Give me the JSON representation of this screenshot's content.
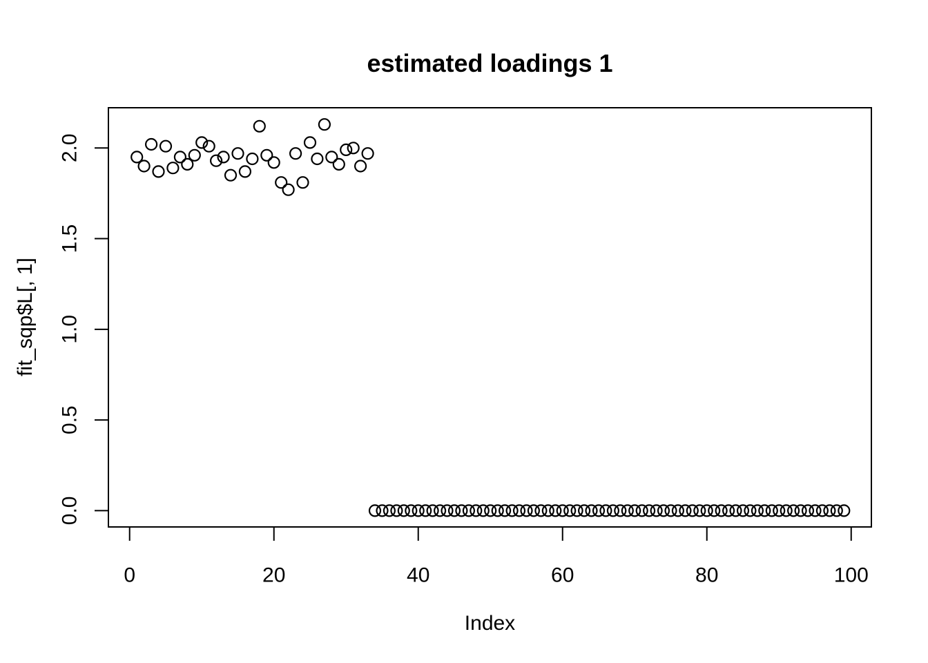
{
  "chart_data": {
    "type": "scatter",
    "title": "estimated loadings 1",
    "xlabel": "Index",
    "ylabel": "fit_sqp$L[, 1]",
    "marker": "open-circle",
    "point_color": "#000000",
    "background_color": "#ffffff",
    "grid": false,
    "legend": "none",
    "xlim": [
      -2.94,
      102.8
    ],
    "ylim": [
      -0.09,
      2.222
    ],
    "x_tick_values": [
      0,
      20,
      40,
      60,
      80,
      100
    ],
    "x_tick_labels": [
      "0",
      "20",
      "40",
      "60",
      "80",
      "100"
    ],
    "y_tick_values": [
      0.0,
      0.5,
      1.0,
      1.5,
      2.0
    ],
    "y_tick_labels": [
      "0.0",
      "0.5",
      "1.0",
      "1.5",
      "2.0"
    ],
    "n_points": 99,
    "points": [
      [
        1,
        1.95
      ],
      [
        2,
        1.9
      ],
      [
        3,
        2.02
      ],
      [
        4,
        1.87
      ],
      [
        5,
        2.01
      ],
      [
        6,
        1.89
      ],
      [
        7,
        1.95
      ],
      [
        8,
        1.91
      ],
      [
        9,
        1.96
      ],
      [
        10,
        2.03
      ],
      [
        11,
        2.01
      ],
      [
        12,
        1.93
      ],
      [
        13,
        1.95
      ],
      [
        14,
        1.85
      ],
      [
        15,
        1.97
      ],
      [
        16,
        1.87
      ],
      [
        17,
        1.94
      ],
      [
        18,
        2.12
      ],
      [
        19,
        1.96
      ],
      [
        20,
        1.92
      ],
      [
        21,
        1.81
      ],
      [
        22,
        1.77
      ],
      [
        23,
        1.97
      ],
      [
        24,
        1.81
      ],
      [
        25,
        2.03
      ],
      [
        26,
        1.94
      ],
      [
        27,
        2.13
      ],
      [
        28,
        1.95
      ],
      [
        29,
        1.91
      ],
      [
        30,
        1.99
      ],
      [
        31,
        2.0
      ],
      [
        32,
        1.9
      ],
      [
        33,
        1.97
      ],
      [
        34,
        0
      ],
      [
        35,
        0
      ],
      [
        36,
        0
      ],
      [
        37,
        0
      ],
      [
        38,
        0
      ],
      [
        39,
        0
      ],
      [
        40,
        0
      ],
      [
        41,
        0
      ],
      [
        42,
        0
      ],
      [
        43,
        0
      ],
      [
        44,
        0
      ],
      [
        45,
        0
      ],
      [
        46,
        0
      ],
      [
        47,
        0
      ],
      [
        48,
        0
      ],
      [
        49,
        0
      ],
      [
        50,
        0
      ],
      [
        51,
        0
      ],
      [
        52,
        0
      ],
      [
        53,
        0
      ],
      [
        54,
        0
      ],
      [
        55,
        0
      ],
      [
        56,
        0
      ],
      [
        57,
        0
      ],
      [
        58,
        0
      ],
      [
        59,
        0
      ],
      [
        60,
        0
      ],
      [
        61,
        0
      ],
      [
        62,
        0
      ],
      [
        63,
        0
      ],
      [
        64,
        0
      ],
      [
        65,
        0
      ],
      [
        66,
        0
      ],
      [
        67,
        0
      ],
      [
        68,
        0
      ],
      [
        69,
        0
      ],
      [
        70,
        0
      ],
      [
        71,
        0
      ],
      [
        72,
        0
      ],
      [
        73,
        0
      ],
      [
        74,
        0
      ],
      [
        75,
        0
      ],
      [
        76,
        0
      ],
      [
        77,
        0
      ],
      [
        78,
        0
      ],
      [
        79,
        0
      ],
      [
        80,
        0
      ],
      [
        81,
        0
      ],
      [
        82,
        0
      ],
      [
        83,
        0
      ],
      [
        84,
        0
      ],
      [
        85,
        0
      ],
      [
        86,
        0
      ],
      [
        87,
        0
      ],
      [
        88,
        0
      ],
      [
        89,
        0
      ],
      [
        90,
        0
      ],
      [
        91,
        0
      ],
      [
        92,
        0
      ],
      [
        93,
        0
      ],
      [
        94,
        0
      ],
      [
        95,
        0
      ],
      [
        96,
        0
      ],
      [
        97,
        0
      ],
      [
        98,
        0
      ],
      [
        99,
        0
      ]
    ]
  }
}
